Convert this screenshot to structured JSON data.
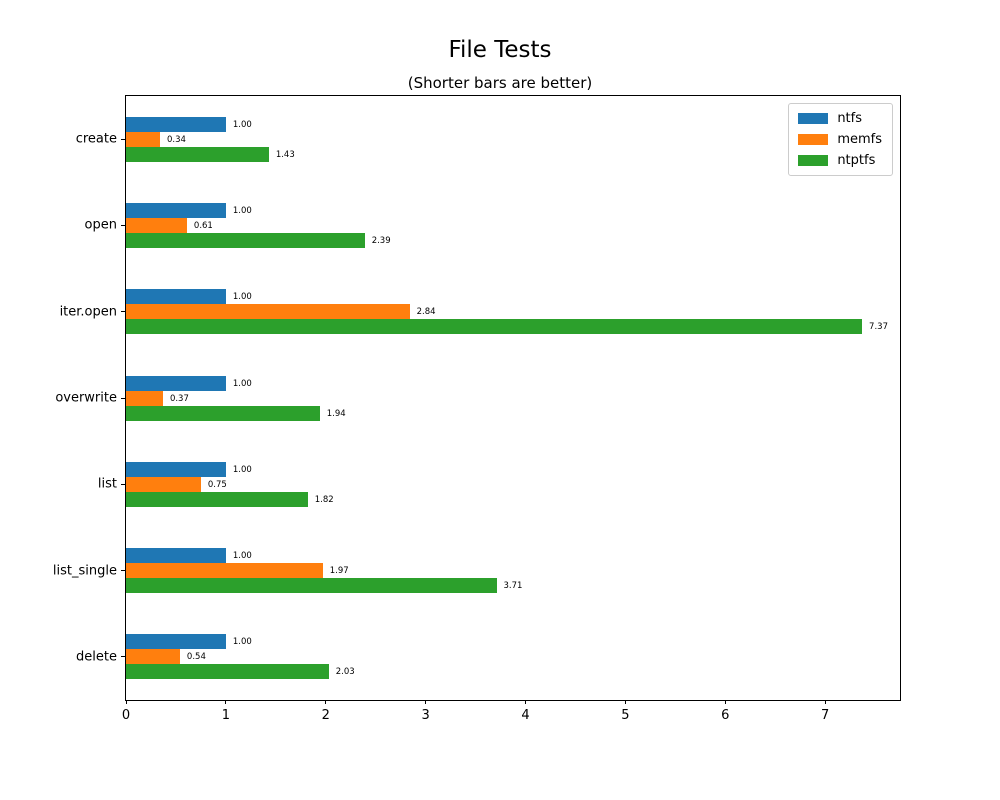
{
  "title": "File Tests",
  "subtitle": "(Shorter bars are better)",
  "chart_data": {
    "type": "bar",
    "orientation": "horizontal",
    "title": "File Tests",
    "subtitle": "(Shorter bars are better)",
    "xlabel": "",
    "ylabel": "",
    "categories": [
      "create",
      "open",
      "iter.open",
      "overwrite",
      "list",
      "list_single",
      "delete"
    ],
    "series": [
      {
        "name": "ntfs",
        "color": "#1f77b4",
        "values": [
          1.0,
          1.0,
          1.0,
          1.0,
          1.0,
          1.0,
          1.0
        ]
      },
      {
        "name": "memfs",
        "color": "#ff7f0e",
        "values": [
          0.34,
          0.61,
          2.84,
          0.37,
          0.75,
          1.97,
          0.54
        ]
      },
      {
        "name": "ntptfs",
        "color": "#2ca02c",
        "values": [
          1.43,
          2.39,
          7.37,
          1.94,
          1.82,
          3.71,
          2.03
        ]
      }
    ],
    "bar_value_labels": [
      [
        "1.00",
        "1.00",
        "1.00",
        "1.00",
        "1.00",
        "1.00",
        "1.00"
      ],
      [
        "0.34",
        "0.61",
        "2.84",
        "0.37",
        "0.75",
        "1.97",
        "0.54"
      ],
      [
        "1.43",
        "2.39",
        "7.37",
        "1.94",
        "1.82",
        "3.71",
        "2.03"
      ]
    ],
    "xlim": [
      0,
      7.75
    ],
    "xticks": [
      0,
      1,
      2,
      3,
      4,
      5,
      6,
      7
    ],
    "grid": false,
    "legend_position": "upper right"
  }
}
